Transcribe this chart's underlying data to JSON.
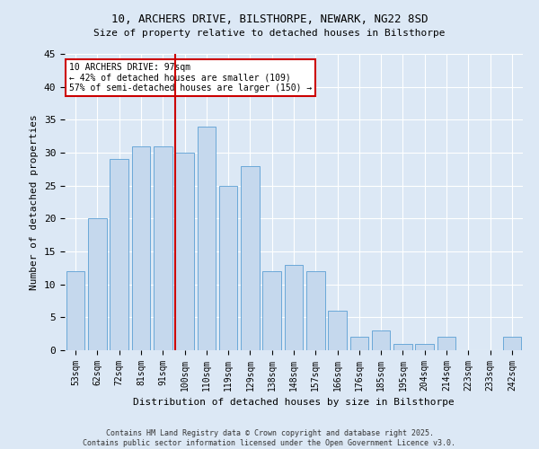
{
  "title1": "10, ARCHERS DRIVE, BILSTHORPE, NEWARK, NG22 8SD",
  "title2": "Size of property relative to detached houses in Bilsthorpe",
  "xlabel": "Distribution of detached houses by size in Bilsthorpe",
  "ylabel": "Number of detached properties",
  "categories": [
    "53sqm",
    "62sqm",
    "72sqm",
    "81sqm",
    "91sqm",
    "100sqm",
    "110sqm",
    "119sqm",
    "129sqm",
    "138sqm",
    "148sqm",
    "157sqm",
    "166sqm",
    "176sqm",
    "185sqm",
    "195sqm",
    "204sqm",
    "214sqm",
    "223sqm",
    "233sqm",
    "242sqm"
  ],
  "values": [
    12,
    20,
    29,
    31,
    31,
    30,
    34,
    25,
    28,
    12,
    13,
    12,
    6,
    2,
    3,
    1,
    1,
    2,
    0,
    0,
    2
  ],
  "bar_color": "#c5d8ed",
  "bar_edge_color": "#5a9fd4",
  "vline_index": 5,
  "vline_color": "#cc0000",
  "annotation_text": "10 ARCHERS DRIVE: 97sqm\n← 42% of detached houses are smaller (109)\n57% of semi-detached houses are larger (150) →",
  "annotation_box_color": "#ffffff",
  "annotation_box_edge": "#cc0000",
  "ylim": [
    0,
    45
  ],
  "yticks": [
    0,
    5,
    10,
    15,
    20,
    25,
    30,
    35,
    40,
    45
  ],
  "background_color": "#dce8f5",
  "grid_color": "#ffffff",
  "footer": "Contains HM Land Registry data © Crown copyright and database right 2025.\nContains public sector information licensed under the Open Government Licence v3.0."
}
